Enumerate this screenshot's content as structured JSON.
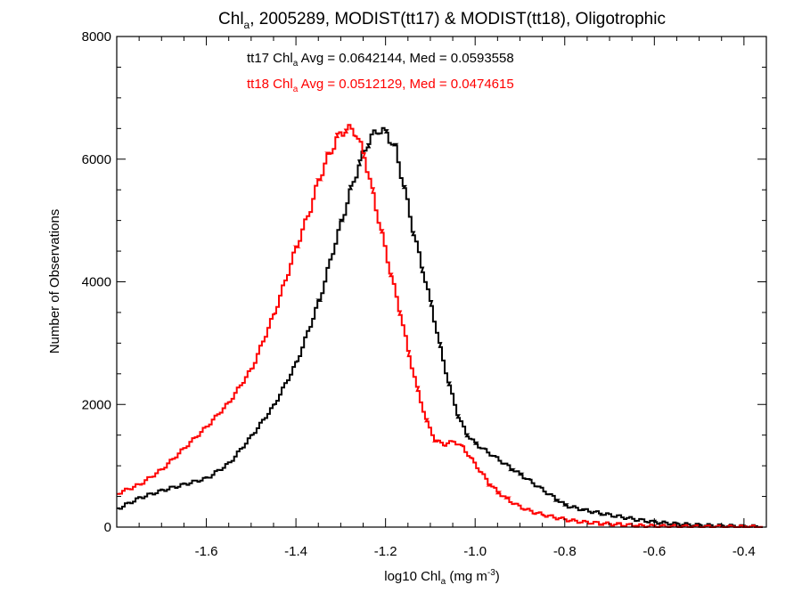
{
  "chart_data": {
    "type": "line",
    "step": true,
    "title": {
      "pre": "Chl",
      "sub": "a",
      "post": ", 2005289, MODIST(tt17) & MODIST(tt18), Oligotrophic"
    },
    "xlabel": {
      "pre": "log10 Chl",
      "sub": "a",
      "mid": " (mg m",
      "sup": "-3",
      "post": ")"
    },
    "ylabel": "Number of Observations",
    "xlim": [
      -1.8,
      -0.35
    ],
    "ylim": [
      0,
      8000
    ],
    "xticks": [
      -1.6,
      -1.4,
      -1.2,
      -1.0,
      -0.8,
      -0.6,
      -0.4
    ],
    "xtick_labels": [
      "-1.6",
      "-1.4",
      "-1.2",
      "-1.0",
      "-0.8",
      "-0.6",
      "-0.4"
    ],
    "yticks": [
      0,
      2000,
      4000,
      6000,
      8000
    ],
    "ytick_labels": [
      "0",
      "2000",
      "4000",
      "6000",
      "8000"
    ],
    "grid": false,
    "annotations": [
      {
        "pre": "tt17 Chl",
        "sub": "a",
        "post": " Avg = 0.0642144, Med = 0.0593558",
        "color": "#000000"
      },
      {
        "pre": "tt18 Chl",
        "sub": "a",
        "post": " Avg = 0.0512129, Med = 0.0474615",
        "color": "#ff0000"
      }
    ],
    "series": [
      {
        "color": "#000000",
        "x": [
          -1.8,
          -1.75,
          -1.7,
          -1.65,
          -1.6,
          -1.55,
          -1.5,
          -1.45,
          -1.4,
          -1.35,
          -1.32,
          -1.3,
          -1.28,
          -1.26,
          -1.24,
          -1.22,
          -1.2,
          -1.18,
          -1.16,
          -1.14,
          -1.12,
          -1.1,
          -1.08,
          -1.06,
          -1.04,
          -1.02,
          -1.0,
          -0.98,
          -0.96,
          -0.94,
          -0.92,
          -0.9,
          -0.88,
          -0.86,
          -0.84,
          -0.82,
          -0.8,
          -0.76,
          -0.72,
          -0.68,
          -0.64,
          -0.6,
          -0.55,
          -0.5,
          -0.45,
          -0.4,
          -0.36
        ],
        "y": [
          300,
          480,
          600,
          700,
          800,
          1050,
          1500,
          2000,
          2700,
          3700,
          4500,
          5000,
          5500,
          5950,
          6300,
          6480,
          6420,
          6150,
          5500,
          4800,
          4200,
          3600,
          2900,
          2300,
          1800,
          1500,
          1350,
          1250,
          1150,
          1050,
          950,
          850,
          750,
          650,
          550,
          450,
          350,
          280,
          220,
          170,
          120,
          80,
          50,
          30,
          20,
          10,
          5
        ]
      },
      {
        "color": "#ff0000",
        "x": [
          -1.8,
          -1.75,
          -1.7,
          -1.65,
          -1.6,
          -1.55,
          -1.5,
          -1.45,
          -1.4,
          -1.37,
          -1.35,
          -1.33,
          -1.31,
          -1.29,
          -1.27,
          -1.25,
          -1.23,
          -1.21,
          -1.19,
          -1.17,
          -1.15,
          -1.13,
          -1.11,
          -1.09,
          -1.07,
          -1.05,
          -1.03,
          -1.01,
          -0.99,
          -0.97,
          -0.95,
          -0.93,
          -0.91,
          -0.89,
          -0.87,
          -0.85,
          -0.82,
          -0.79,
          -0.76,
          -0.72,
          -0.68,
          -0.64,
          -0.6,
          -0.55,
          -0.5,
          -0.4,
          -0.36
        ],
        "y": [
          550,
          700,
          950,
          1300,
          1650,
          2050,
          2600,
          3500,
          4600,
          5200,
          5700,
          6050,
          6350,
          6500,
          6450,
          6050,
          5400,
          4750,
          4100,
          3500,
          2800,
          2200,
          1700,
          1400,
          1350,
          1400,
          1300,
          1100,
          900,
          700,
          560,
          450,
          360,
          290,
          240,
          200,
          150,
          110,
          80,
          60,
          40,
          25,
          15,
          10,
          5,
          2,
          0
        ]
      }
    ]
  }
}
